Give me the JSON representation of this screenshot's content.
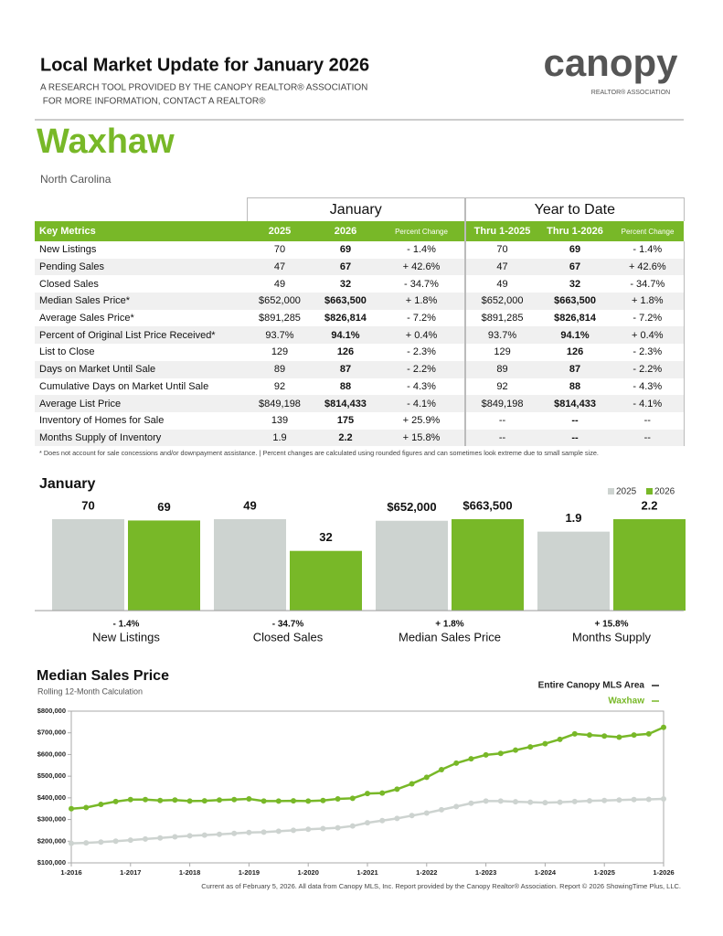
{
  "header": {
    "title": "Local Market Update for January 2026",
    "subtitle_1": "A RESEARCH TOOL PROVIDED BY THE CANOPY REALTOR® ASSOCIATION",
    "subtitle_2": " FOR MORE INFORMATION, CONTACT A REALTOR®",
    "logo": "canopy",
    "logo_sub": "REALTOR® ASSOCIATION",
    "area": "Waxhaw",
    "state": "North Carolina"
  },
  "table": {
    "groups": [
      "January",
      "Year to Date"
    ],
    "columns": [
      "Key Metrics",
      "2025",
      "2026",
      "Percent Change",
      "Thru 1-2025",
      "Thru 1-2026",
      "Percent Change"
    ],
    "rows": [
      [
        "New Listings",
        "70",
        "69",
        "- 1.4%",
        "70",
        "69",
        "- 1.4%"
      ],
      [
        "Pending Sales",
        "47",
        "67",
        "+ 42.6%",
        "47",
        "67",
        "+ 42.6%"
      ],
      [
        "Closed Sales",
        "49",
        "32",
        "- 34.7%",
        "49",
        "32",
        "- 34.7%"
      ],
      [
        "Median Sales Price*",
        "$652,000",
        "$663,500",
        "+ 1.8%",
        "$652,000",
        "$663,500",
        "+ 1.8%"
      ],
      [
        "Average Sales Price*",
        "$891,285",
        "$826,814",
        "- 7.2%",
        "$891,285",
        "$826,814",
        "- 7.2%"
      ],
      [
        "Percent of Original List Price Received*",
        "93.7%",
        "94.1%",
        "+ 0.4%",
        "93.7%",
        "94.1%",
        "+ 0.4%"
      ],
      [
        "List to Close",
        "129",
        "126",
        "- 2.3%",
        "129",
        "126",
        "- 2.3%"
      ],
      [
        "Days on Market Until Sale",
        "89",
        "87",
        "- 2.2%",
        "89",
        "87",
        "- 2.2%"
      ],
      [
        "Cumulative Days on Market Until Sale",
        "92",
        "88",
        "- 4.3%",
        "92",
        "88",
        "- 4.3%"
      ],
      [
        "Average List Price",
        "$849,198",
        "$814,433",
        "- 4.1%",
        "$849,198",
        "$814,433",
        "- 4.1%"
      ],
      [
        "Inventory of Homes for Sale",
        "139",
        "175",
        "+ 25.9%",
        "--",
        "--",
        "--"
      ],
      [
        "Months Supply of Inventory",
        "1.9",
        "2.2",
        "+ 15.8%",
        "--",
        "--",
        "--"
      ]
    ],
    "footnote": "* Does not account for sale concessions and/or downpayment assistance.  |  Percent changes are calculated using rounded figures and can sometimes look extreme due to small sample size."
  },
  "chart_data": [
    {
      "type": "bar",
      "title": "January",
      "categories": [
        "New Listings",
        "Closed Sales",
        "Median Sales Price",
        "Months Supply"
      ],
      "change_labels": [
        "- 1.4%",
        "- 34.7%",
        "+ 1.8%",
        "+ 15.8%"
      ],
      "series": [
        {
          "name": "2025",
          "color": "#cdd3d0",
          "values": [
            70,
            49,
            652000,
            1.9
          ],
          "value_labels": [
            "70",
            "49",
            "$652,000",
            "1.9"
          ]
        },
        {
          "name": "2026",
          "color": "#78b828",
          "values": [
            69,
            32,
            663500,
            2.2
          ],
          "value_labels": [
            "69",
            "32",
            "$663,500",
            "2.2"
          ]
        }
      ]
    },
    {
      "type": "line",
      "title": "Median Sales Price",
      "subtitle": "Rolling 12-Month Calculation",
      "x": [
        2016,
        2016.25,
        2016.5,
        2016.75,
        2017,
        2017.25,
        2017.5,
        2017.75,
        2018,
        2018.25,
        2018.5,
        2018.75,
        2019,
        2019.25,
        2019.5,
        2019.75,
        2020,
        2020.25,
        2020.5,
        2020.75,
        2021,
        2021.25,
        2021.5,
        2021.75,
        2022,
        2022.25,
        2022.5,
        2022.75,
        2023,
        2023.25,
        2023.5,
        2023.75,
        2024,
        2024.25,
        2024.5,
        2024.75,
        2025,
        2025.25,
        2025.5,
        2025.75,
        2026
      ],
      "series": [
        {
          "name": "Entire Canopy MLS Area",
          "color": "#cdd3d0",
          "values": [
            190000,
            192000,
            196000,
            200000,
            205000,
            210000,
            215000,
            220000,
            225000,
            228000,
            232000,
            236000,
            240000,
            242000,
            246000,
            250000,
            255000,
            258000,
            262000,
            270000,
            285000,
            295000,
            305000,
            318000,
            330000,
            345000,
            360000,
            375000,
            385000,
            385000,
            382000,
            380000,
            378000,
            380000,
            383000,
            386000,
            388000,
            390000,
            392000,
            393000,
            395000
          ]
        },
        {
          "name": "Waxhaw",
          "color": "#78b828",
          "values": [
            350000,
            355000,
            370000,
            383000,
            392000,
            392000,
            388000,
            390000,
            385000,
            386000,
            390000,
            392000,
            395000,
            385000,
            385000,
            386000,
            385000,
            388000,
            395000,
            398000,
            420000,
            422000,
            440000,
            465000,
            495000,
            530000,
            560000,
            580000,
            598000,
            605000,
            620000,
            635000,
            650000,
            670000,
            695000,
            690000,
            685000,
            680000,
            690000,
            695000,
            725000
          ]
        }
      ],
      "xlim": [
        2016,
        2026
      ],
      "xticks": [
        {
          "value": 2016,
          "label": "1-2016"
        },
        {
          "value": 2017,
          "label": "1-2017"
        },
        {
          "value": 2018,
          "label": "1-2018"
        },
        {
          "value": 2019,
          "label": "1-2019"
        },
        {
          "value": 2020,
          "label": "1-2020"
        },
        {
          "value": 2021,
          "label": "1-2021"
        },
        {
          "value": 2022,
          "label": "1-2022"
        },
        {
          "value": 2023,
          "label": "1-2023"
        },
        {
          "value": 2024,
          "label": "1-2024"
        },
        {
          "value": 2025,
          "label": "1-2025"
        },
        {
          "value": 2026,
          "label": "1-2026"
        }
      ],
      "ylim": [
        100000,
        800000
      ],
      "yticks": [
        {
          "value": 100000,
          "label": "$100,000"
        },
        {
          "value": 200000,
          "label": "$200,000"
        },
        {
          "value": 300000,
          "label": "$300,000"
        },
        {
          "value": 400000,
          "label": "$400,000"
        },
        {
          "value": 500000,
          "label": "$500,000"
        },
        {
          "value": 600000,
          "label": "$600,000"
        },
        {
          "value": 700000,
          "label": "$700,000"
        },
        {
          "value": 800000,
          "label": "$800,000"
        }
      ]
    }
  ],
  "footer": "Current as of February 5, 2026. All data from Canopy MLS, Inc. Report provided by the Canopy Realtor® Association. Report © 2026 ShowingTime Plus, LLC."
}
